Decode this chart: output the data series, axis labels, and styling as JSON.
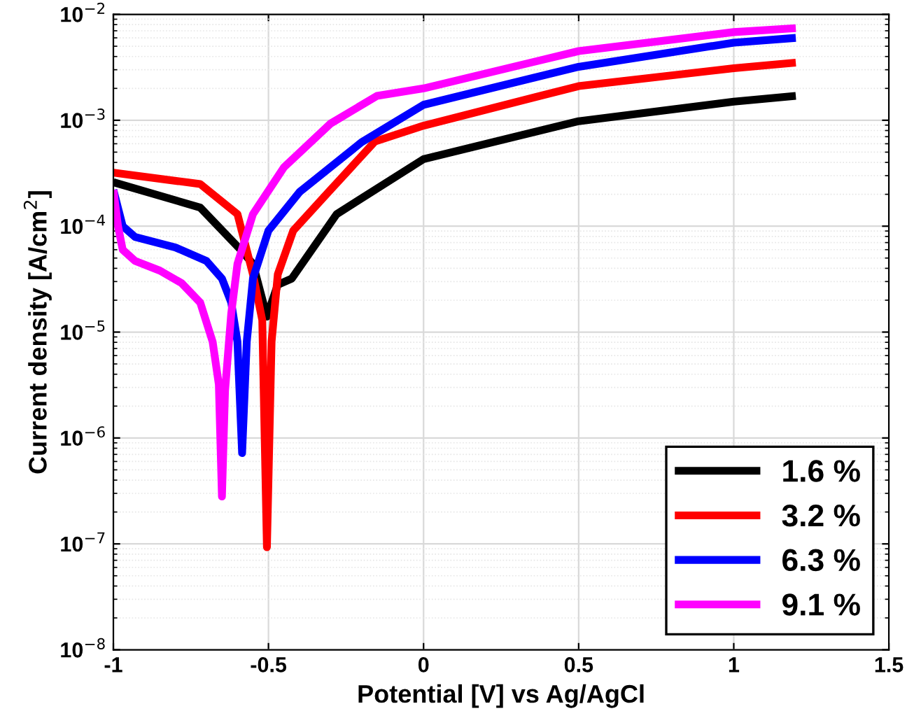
{
  "chart_data": {
    "type": "line",
    "xlabel": "Potential [V] vs Ag/AgCl",
    "ylabel": "Current density [A/cm$^{2}$]",
    "xlim": [
      -1,
      1.5
    ],
    "xticks": [
      -1,
      -0.5,
      0,
      0.5,
      1,
      1.5
    ],
    "ylim": [
      1e-08,
      0.01
    ],
    "yticks": [
      {
        "value": 1e-08,
        "label": "10$^{−8}$"
      },
      {
        "value": 1e-07,
        "label": "10$^{−7}$"
      },
      {
        "value": 1e-06,
        "label": "10$^{−6}$"
      },
      {
        "value": 1e-05,
        "label": "10$^{−5}$"
      },
      {
        "value": 0.0001,
        "label": "10$^{−4}$"
      },
      {
        "value": 0.001,
        "label": "10$^{−3}$"
      },
      {
        "value": 0.01,
        "label": "10$^{−2}$"
      }
    ],
    "log": "y",
    "grid": true,
    "legend": "bottom right",
    "marker": "none",
    "line_style": "solid",
    "series": [
      {
        "name": "1.6 %",
        "color": "#000000",
        "x": [
          -1,
          -0.72,
          -0.59,
          -0.55,
          -0.505,
          -0.47,
          -0.425,
          -0.28,
          0,
          0.5,
          1,
          1.2
        ],
        "values": [
          0.00026,
          0.00015,
          6e-05,
          4.4e-05,
          1.4e-05,
          2.8e-05,
          3.2e-05,
          0.00013,
          0.00043,
          0.00098,
          0.0015,
          0.0017
        ]
      },
      {
        "name": "3.2 %",
        "color": "#ff0000",
        "x": [
          -1,
          -0.72,
          -0.6,
          -0.55,
          -0.52,
          -0.505,
          -0.49,
          -0.47,
          -0.42,
          -0.3,
          -0.157,
          0,
          0.5,
          1,
          1.2
        ],
        "values": [
          0.00032,
          0.00025,
          0.00013,
          3.5e-05,
          1.3e-05,
          9.3e-08,
          8.1e-06,
          3.5e-05,
          9.1e-05,
          0.00022,
          0.00063,
          0.00089,
          0.0021,
          0.0031,
          0.0035
        ]
      },
      {
        "name": "6.3 %",
        "color": "#0000ff",
        "x": [
          -1,
          -0.97,
          -0.93,
          -0.8,
          -0.7,
          -0.65,
          -0.62,
          -0.6,
          -0.585,
          -0.57,
          -0.55,
          -0.5,
          -0.4,
          -0.2,
          0,
          0.5,
          1,
          1.2
        ],
        "values": [
          0.00022,
          0.0001,
          7.9e-05,
          6.3e-05,
          4.7e-05,
          3.2e-05,
          1.9e-05,
          8.1e-06,
          7.2e-07,
          8.1e-06,
          3.2e-05,
          9.1e-05,
          0.00021,
          0.00062,
          0.0014,
          0.0032,
          0.0054,
          0.006
        ]
      },
      {
        "name": "9.1 %",
        "color": "#ff00ff",
        "x": [
          -1,
          -0.985,
          -0.97,
          -0.93,
          -0.85,
          -0.78,
          -0.72,
          -0.68,
          -0.66,
          -0.65,
          -0.64,
          -0.62,
          -0.6,
          -0.55,
          -0.45,
          -0.3,
          -0.15,
          0,
          0.5,
          1,
          1.2
        ],
        "values": [
          0.00022,
          0.0001,
          6e-05,
          4.7e-05,
          3.8e-05,
          2.9e-05,
          1.9e-05,
          8.1e-06,
          3.2e-06,
          2.8e-07,
          2.8e-06,
          1.5e-05,
          4.4e-05,
          0.00013,
          0.00036,
          0.00093,
          0.0017,
          0.002,
          0.0045,
          0.0068,
          0.0074
        ]
      }
    ]
  }
}
